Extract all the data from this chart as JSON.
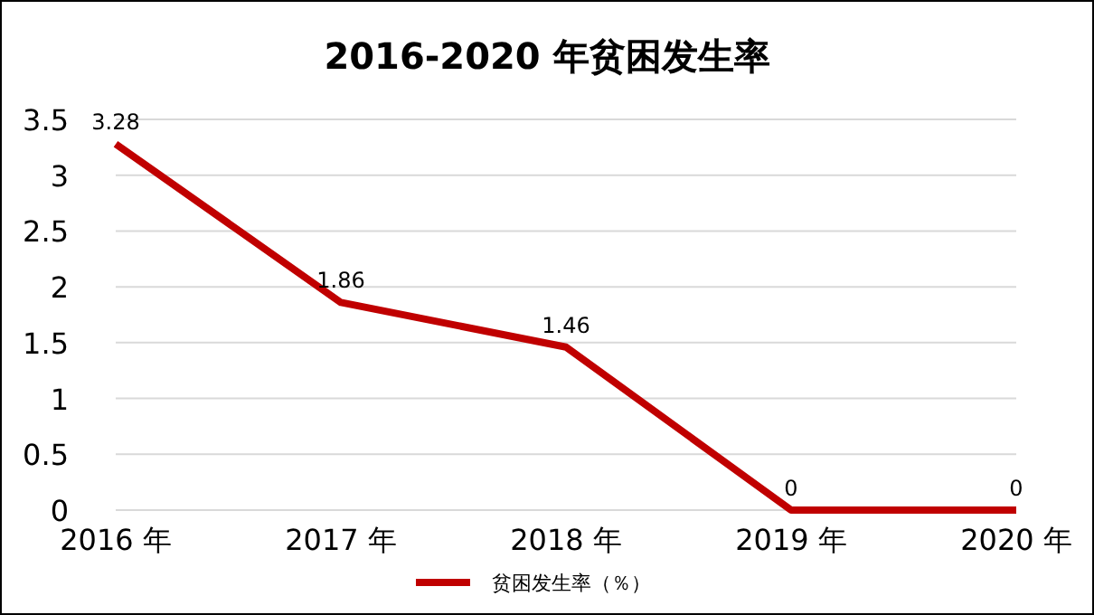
{
  "chart_data": {
    "type": "line",
    "title": "2016-2020 年贫困发生率",
    "categories": [
      "2016 年",
      "2017 年",
      "2018 年",
      "2019 年",
      "2020 年"
    ],
    "series": [
      {
        "name": "贫困发生率（％）",
        "color": "#c00000",
        "values": [
          3.28,
          1.86,
          1.46,
          0,
          0
        ]
      }
    ],
    "ylim": [
      0,
      3.5
    ],
    "yticks": [
      0,
      0.5,
      1,
      1.5,
      2,
      2.5,
      3,
      3.5
    ],
    "grid": "y",
    "legend": "bottom",
    "data_labels": true,
    "marker": "none",
    "line_style": "solid"
  }
}
